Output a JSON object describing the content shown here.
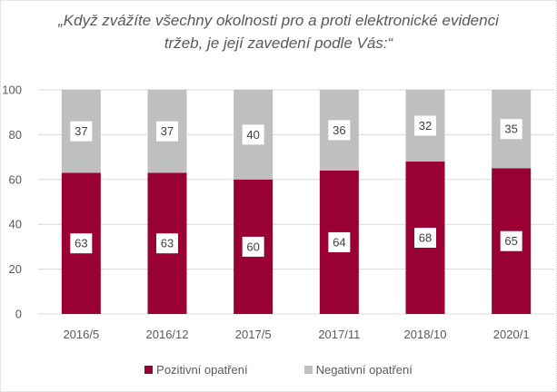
{
  "chart_data": {
    "type": "bar",
    "stacked": true,
    "title": "„Když zvážíte všechny okolnosti pro a proti elektronické evidenci tržeb, je její zavedení podle Vás:“",
    "title_lines": [
      "„Když zvážíte všechny okolnosti pro a proti elektronické evidenci",
      "tržeb, je její zavedení podle Vás:“"
    ],
    "categories": [
      "2016/5",
      "2016/12",
      "2017/5",
      "2017/11",
      "2018/10",
      "2020/1"
    ],
    "series": [
      {
        "name": "Pozitivní opatření",
        "color": "#990033",
        "values": [
          63,
          63,
          60,
          64,
          68,
          65
        ]
      },
      {
        "name": "Negativní opatření",
        "color": "#bfbfbf",
        "values": [
          37,
          37,
          40,
          36,
          32,
          35
        ]
      }
    ],
    "xlabel": "",
    "ylabel": "",
    "ylim": [
      0,
      100
    ],
    "yticks": [
      0,
      20,
      40,
      60,
      80,
      100
    ],
    "grid": true,
    "legend_position": "bottom",
    "data_labels": true
  }
}
